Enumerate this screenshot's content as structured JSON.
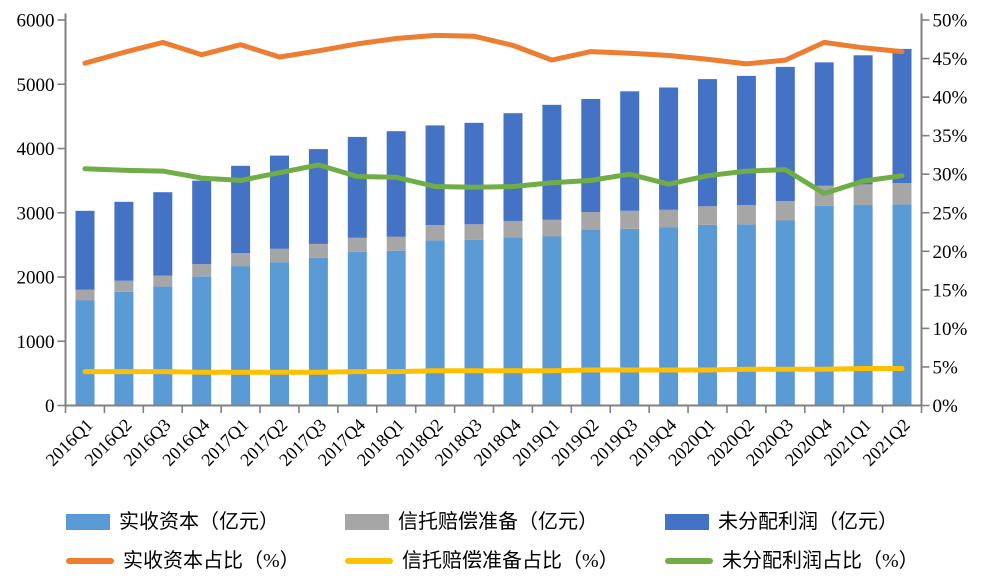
{
  "chart_data": {
    "type": "combo-stacked-bar-line",
    "title": "",
    "grid": false,
    "legend_position": "bottom",
    "categories": [
      "2016Q1",
      "2016Q2",
      "2016Q3",
      "2016Q4",
      "2017Q1",
      "2017Q2",
      "2017Q3",
      "2017Q4",
      "2018Q1",
      "2018Q2",
      "2018Q3",
      "2018Q4",
      "2019Q1",
      "2019Q2",
      "2019Q3",
      "2019Q4",
      "2020Q1",
      "2020Q2",
      "2020Q3",
      "2020Q4",
      "2021Q1",
      "2021Q2"
    ],
    "left_axis": {
      "min": 0,
      "max": 6000,
      "step": 1000,
      "tick_labels": [
        "0",
        "1000",
        "2000",
        "3000",
        "4000",
        "5000",
        "6000"
      ]
    },
    "right_axis": {
      "min": 0,
      "max": 50,
      "step": 5,
      "tick_labels": [
        "0%",
        "5%",
        "10%",
        "15%",
        "20%",
        "25%",
        "30%",
        "35%",
        "40%",
        "45%",
        "50%"
      ]
    },
    "bar_series": [
      {
        "key": "paid-in-capital",
        "name": "实收资本（亿元）",
        "color": "#5B9BD5",
        "axis": "left",
        "values": [
          1640,
          1770,
          1850,
          2010,
          2170,
          2230,
          2300,
          2390,
          2410,
          2570,
          2580,
          2620,
          2630,
          2740,
          2750,
          2770,
          2810,
          2820,
          2880,
          3110,
          3120,
          3130
        ]
      },
      {
        "key": "trust-compensation-reserve",
        "name": "信托赔偿准备（亿元）",
        "color": "#A6A6A6",
        "axis": "left",
        "values": [
          160,
          170,
          170,
          190,
          200,
          210,
          215,
          220,
          220,
          240,
          240,
          250,
          260,
          270,
          280,
          280,
          290,
          300,
          300,
          310,
          320,
          330
        ]
      },
      {
        "key": "undistributed-profit",
        "name": "未分配利润（亿元）",
        "color": "#4472C4",
        "axis": "left",
        "values": [
          1230,
          1230,
          1300,
          1300,
          1360,
          1450,
          1475,
          1570,
          1640,
          1550,
          1580,
          1680,
          1790,
          1760,
          1860,
          1900,
          1980,
          2010,
          2090,
          1920,
          2010,
          2090
        ]
      }
    ],
    "line_series": [
      {
        "key": "paid-in-capital-ratio",
        "name": "实收资本占比（%）",
        "color": "#ED7D31",
        "axis": "right",
        "values": [
          44.4,
          45.8,
          47.1,
          45.5,
          46.8,
          45.2,
          46.0,
          46.9,
          47.6,
          48.0,
          47.9,
          46.7,
          44.8,
          45.9,
          45.7,
          45.4,
          44.9,
          44.3,
          44.8,
          47.1,
          46.4,
          45.9
        ]
      },
      {
        "key": "trust-compensation-reserve-ratio",
        "name": "信托赔偿准备占比（%）",
        "color": "#FFC000",
        "axis": "right",
        "values": [
          4.4,
          4.4,
          4.4,
          4.3,
          4.3,
          4.3,
          4.3,
          4.4,
          4.4,
          4.5,
          4.5,
          4.5,
          4.5,
          4.6,
          4.6,
          4.6,
          4.6,
          4.7,
          4.7,
          4.7,
          4.8,
          4.8
        ]
      },
      {
        "key": "undistributed-profit-ratio",
        "name": "未分配利润占比（%）",
        "color": "#70AD47",
        "axis": "right",
        "values": [
          30.7,
          30.5,
          30.4,
          29.5,
          29.2,
          30.2,
          31.2,
          29.7,
          29.6,
          28.4,
          28.3,
          28.4,
          28.9,
          29.2,
          30.0,
          28.7,
          29.8,
          30.4,
          30.6,
          27.5,
          29.1,
          29.8
        ]
      }
    ],
    "colors": {
      "axis": "#808080",
      "text": "#000000",
      "background": "#FFFFFF"
    }
  }
}
